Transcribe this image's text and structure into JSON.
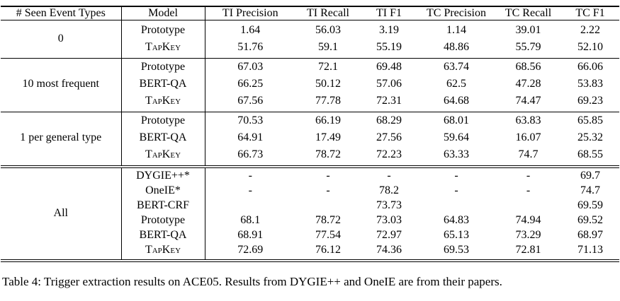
{
  "table": {
    "columns": [
      "# Seen Event Types",
      "Model",
      "TI Precision",
      "TI Recall",
      "TI F1",
      "TC Precision",
      "TC Recall",
      "TC F1"
    ],
    "groups": [
      {
        "label": "0",
        "rows": [
          {
            "model": "Prototype",
            "smallcaps": false,
            "values": [
              "1.64",
              "56.03",
              "3.19",
              "1.14",
              "39.01",
              "2.22"
            ]
          },
          {
            "model": "TapKey",
            "smallcaps": true,
            "values": [
              "51.76",
              "59.1",
              "55.19",
              "48.86",
              "55.79",
              "52.10"
            ]
          }
        ]
      },
      {
        "label": "10 most frequent",
        "rows": [
          {
            "model": "Prototype",
            "smallcaps": false,
            "values": [
              "67.03",
              "72.1",
              "69.48",
              "63.74",
              "68.56",
              "66.06"
            ]
          },
          {
            "model": "BERT-QA",
            "smallcaps": false,
            "values": [
              "66.25",
              "50.12",
              "57.06",
              "62.5",
              "47.28",
              "53.83"
            ]
          },
          {
            "model": "TapKey",
            "smallcaps": true,
            "values": [
              "67.56",
              "77.78",
              "72.31",
              "64.68",
              "74.47",
              "69.23"
            ]
          }
        ]
      },
      {
        "label": "1 per general type",
        "rows": [
          {
            "model": "Prototype",
            "smallcaps": false,
            "values": [
              "70.53",
              "66.19",
              "68.29",
              "68.01",
              "63.83",
              "65.85"
            ]
          },
          {
            "model": "BERT-QA",
            "smallcaps": false,
            "values": [
              "64.91",
              "17.49",
              "27.56",
              "59.64",
              "16.07",
              "25.32"
            ]
          },
          {
            "model": "TapKey",
            "smallcaps": true,
            "values": [
              "66.73",
              "78.72",
              "72.23",
              "63.33",
              "74.7",
              "68.55"
            ]
          }
        ]
      },
      {
        "label": "All",
        "rows": [
          {
            "model": "DYGIE++*",
            "smallcaps": false,
            "values": [
              "-",
              "-",
              "-",
              "-",
              "-",
              "69.7"
            ]
          },
          {
            "model": "OneIE*",
            "smallcaps": false,
            "values": [
              "-",
              "-",
              "78.2",
              "-",
              "-",
              "74.7"
            ]
          },
          {
            "model": "BERT-CRF",
            "smallcaps": false,
            "values": [
              "",
              "",
              "73.73",
              "",
              "",
              "69.59"
            ]
          },
          {
            "model": "Prototype",
            "smallcaps": false,
            "values": [
              "68.1",
              "78.72",
              "73.03",
              "64.83",
              "74.94",
              "69.52"
            ]
          },
          {
            "model": "BERT-QA",
            "smallcaps": false,
            "values": [
              "68.91",
              "77.54",
              "72.97",
              "65.13",
              "73.29",
              "68.97"
            ]
          },
          {
            "model": "TapKey",
            "smallcaps": true,
            "values": [
              "72.69",
              "76.12",
              "74.36",
              "69.53",
              "72.81",
              "71.13"
            ]
          }
        ]
      }
    ]
  },
  "caption": "Table 4: Trigger extraction results on ACE05. Results from DYGIE++ and OneIE are from their papers."
}
